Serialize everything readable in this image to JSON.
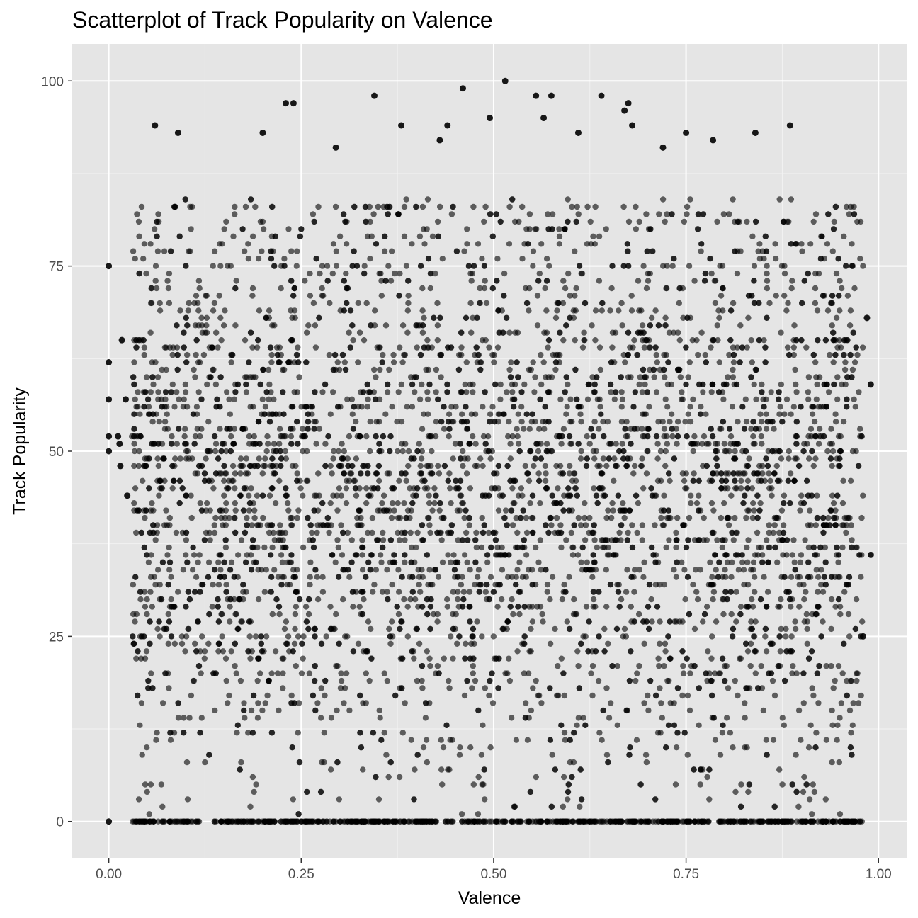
{
  "chart_data": {
    "type": "scatter",
    "title": "Scatterplot of Track Popularity on Valence",
    "xlabel": "Valence",
    "ylabel": "Track Popularity",
    "xlim": [
      -0.0475,
      1.0375
    ],
    "ylim": [
      -5,
      105
    ],
    "x_ticks": [
      0.0,
      0.25,
      0.5,
      0.75,
      1.0
    ],
    "x_tick_labels": [
      "0.00",
      "0.25",
      "0.50",
      "0.75",
      "1.00"
    ],
    "y_ticks": [
      0,
      25,
      50,
      75,
      100
    ],
    "y_tick_labels": [
      "0",
      "25",
      "50",
      "75",
      "100"
    ],
    "grid": true,
    "panel_background": "#e5e5e5",
    "point_color": "#000000",
    "point_alpha": 0.6,
    "x_density_range": [
      0.03,
      0.98
    ],
    "y_density_range": [
      0,
      84
    ],
    "notable_points": [
      {
        "x": 0.0,
        "y": 75
      },
      {
        "x": 0.0,
        "y": 62
      },
      {
        "x": 0.0,
        "y": 57
      },
      {
        "x": 0.0,
        "y": 52
      },
      {
        "x": 0.0,
        "y": 50
      },
      {
        "x": 0.0,
        "y": 0
      },
      {
        "x": 0.012,
        "y": 52
      },
      {
        "x": 0.014,
        "y": 51
      },
      {
        "x": 0.017,
        "y": 65
      },
      {
        "x": 0.015,
        "y": 48
      },
      {
        "x": 0.022,
        "y": 57
      },
      {
        "x": 0.024,
        "y": 44
      },
      {
        "x": 0.06,
        "y": 94
      },
      {
        "x": 0.09,
        "y": 93
      },
      {
        "x": 0.2,
        "y": 93
      },
      {
        "x": 0.24,
        "y": 97
      },
      {
        "x": 0.23,
        "y": 97
      },
      {
        "x": 0.345,
        "y": 98
      },
      {
        "x": 0.46,
        "y": 99
      },
      {
        "x": 0.515,
        "y": 100
      },
      {
        "x": 0.555,
        "y": 98
      },
      {
        "x": 0.575,
        "y": 98
      },
      {
        "x": 0.64,
        "y": 98
      },
      {
        "x": 0.675,
        "y": 97
      },
      {
        "x": 0.67,
        "y": 96
      },
      {
        "x": 0.495,
        "y": 95
      },
      {
        "x": 0.565,
        "y": 95
      },
      {
        "x": 0.38,
        "y": 94
      },
      {
        "x": 0.44,
        "y": 94
      },
      {
        "x": 0.68,
        "y": 94
      },
      {
        "x": 0.885,
        "y": 94
      },
      {
        "x": 0.75,
        "y": 93
      },
      {
        "x": 0.84,
        "y": 93
      },
      {
        "x": 0.61,
        "y": 93
      },
      {
        "x": 0.785,
        "y": 92
      },
      {
        "x": 0.43,
        "y": 92
      },
      {
        "x": 0.295,
        "y": 91
      },
      {
        "x": 0.72,
        "y": 91
      },
      {
        "x": 0.985,
        "y": 68
      },
      {
        "x": 0.99,
        "y": 59
      },
      {
        "x": 0.99,
        "y": 36
      },
      {
        "x": 0.98,
        "y": 25
      }
    ]
  }
}
